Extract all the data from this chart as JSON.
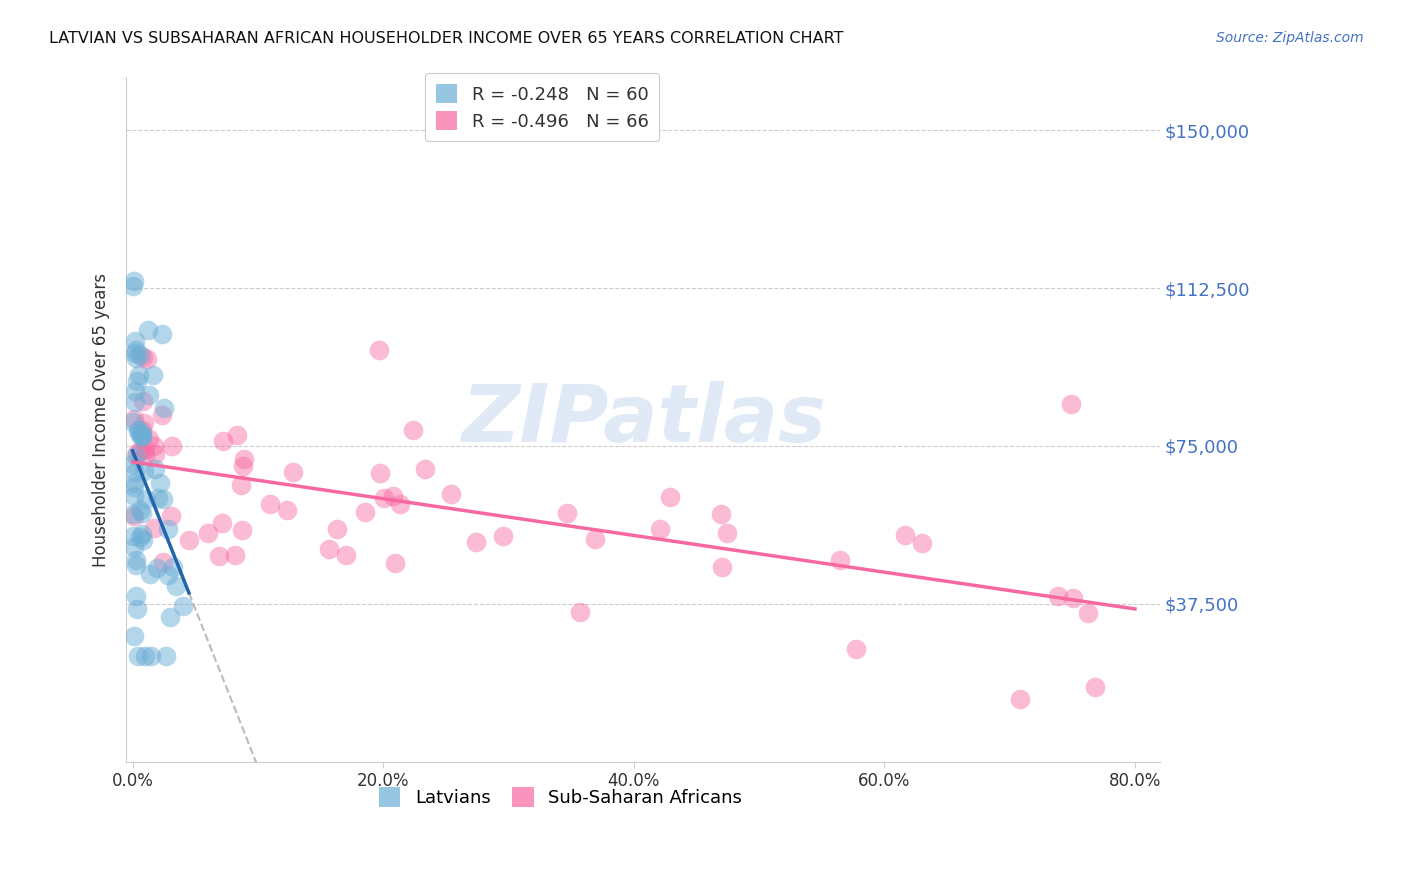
{
  "title": "LATVIAN VS SUBSAHARAN AFRICAN HOUSEHOLDER INCOME OVER 65 YEARS CORRELATION CHART",
  "source_text": "Source: ZipAtlas.com",
  "ylabel": "Householder Income Over 65 years",
  "watermark": "ZIPatlas",
  "ytick_vals": [
    37500,
    75000,
    112500,
    150000
  ],
  "ytick_labels": [
    "$37,500",
    "$75,000",
    "$112,500",
    "$150,000"
  ],
  "xticks": [
    0.0,
    0.2,
    0.4,
    0.6,
    0.8
  ],
  "xtick_labels": [
    "0.0%",
    "20.0%",
    "40.0%",
    "60.0%",
    "80.0%"
  ],
  "xlim": [
    -0.005,
    0.82
  ],
  "ylim": [
    0,
    162500
  ],
  "latvian_color": "#6baed6",
  "latvian_line_color": "#2166ac",
  "subsaharan_color": "#f768a1",
  "subsaharan_line_color": "#f768a1",
  "dash_color": "#aaaaaa",
  "right_axis_color": "#4472c4",
  "latvian_R": -0.248,
  "latvian_N": 60,
  "subsaharan_R": -0.496,
  "subsaharan_N": 66,
  "legend_R_color": "#e05080",
  "legend_N_color": "#4472c4"
}
